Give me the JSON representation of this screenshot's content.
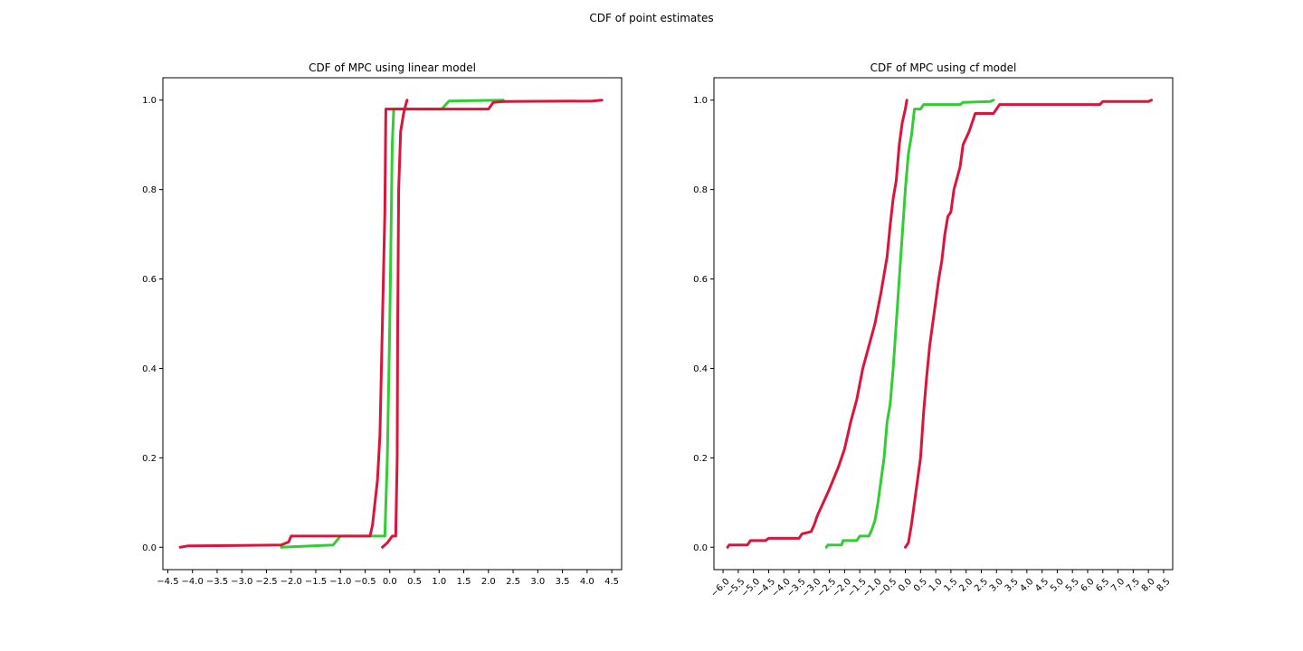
{
  "figure": {
    "suptitle": "CDF of point estimates"
  },
  "chart_data": [
    {
      "type": "line",
      "title": "CDF of MPC using linear model",
      "xlabel": "",
      "ylabel": "",
      "xlim": [
        -4.6,
        4.7
      ],
      "ylim": [
        -0.05,
        1.05
      ],
      "xticks": [
        -4.5,
        -4.0,
        -3.5,
        -3.0,
        -2.5,
        -2.0,
        -1.5,
        -1.0,
        -0.5,
        0.0,
        0.5,
        1.0,
        1.5,
        2.0,
        2.5,
        3.0,
        3.5,
        4.0,
        4.5
      ],
      "xtick_labels": [
        "−4.5",
        "−4.0",
        "−3.5",
        "−3.0",
        "−2.5",
        "−2.0",
        "−1.5",
        "−1.0",
        "−0.5",
        "0.0",
        "0.5",
        "1.0",
        "1.5",
        "2.0",
        "2.5",
        "3.0",
        "3.5",
        "4.0",
        "4.5"
      ],
      "xtick_rotation": 0,
      "yticks": [
        0.0,
        0.2,
        0.4,
        0.6,
        0.8,
        1.0
      ],
      "ytick_labels": [
        "0.0",
        "0.2",
        "0.4",
        "0.6",
        "0.8",
        "1.0"
      ],
      "grid": false,
      "series": [
        {
          "color": "#32CD32",
          "points": [
            [
              -2.2,
              0.0
            ],
            [
              -1.15,
              0.005
            ],
            [
              -1.0,
              0.025
            ],
            [
              -0.1,
              0.025
            ],
            [
              -0.05,
              0.2
            ],
            [
              0.0,
              0.5
            ],
            [
              0.05,
              0.9
            ],
            [
              0.08,
              0.98
            ],
            [
              1.05,
              0.98
            ],
            [
              1.2,
              0.998
            ],
            [
              2.3,
              1.0
            ]
          ]
        },
        {
          "color": "#DC143C",
          "points": [
            [
              -4.25,
              0.0
            ],
            [
              -4.1,
              0.003
            ],
            [
              -2.2,
              0.005
            ],
            [
              -2.05,
              0.012
            ],
            [
              -2.0,
              0.025
            ],
            [
              -0.4,
              0.025
            ],
            [
              -0.35,
              0.05
            ],
            [
              -0.3,
              0.1
            ],
            [
              -0.25,
              0.15
            ],
            [
              -0.2,
              0.25
            ],
            [
              -0.15,
              0.5
            ],
            [
              -0.1,
              0.75
            ],
            [
              -0.08,
              0.98
            ],
            [
              2.0,
              0.98
            ],
            [
              2.1,
              0.995
            ],
            [
              2.3,
              0.997
            ],
            [
              4.1,
              0.998
            ],
            [
              4.3,
              1.0
            ]
          ]
        },
        {
          "color": "#DC143C",
          "points": [
            [
              -0.15,
              0.0
            ],
            [
              -0.05,
              0.01
            ],
            [
              0.05,
              0.025
            ],
            [
              0.12,
              0.025
            ],
            [
              0.15,
              0.2
            ],
            [
              0.16,
              0.5
            ],
            [
              0.18,
              0.8
            ],
            [
              0.22,
              0.93
            ],
            [
              0.28,
              0.97
            ],
            [
              0.3,
              0.98
            ],
            [
              0.35,
              1.0
            ]
          ]
        }
      ]
    },
    {
      "type": "line",
      "title": "CDF of MPC using cf model",
      "xlabel": "",
      "ylabel": "",
      "xlim": [
        -6.3,
        8.8
      ],
      "ylim": [
        -0.05,
        1.05
      ],
      "xticks": [
        -6.0,
        -5.5,
        -5.0,
        -4.5,
        -4.0,
        -3.5,
        -3.0,
        -2.5,
        -2.0,
        -1.5,
        -1.0,
        -0.5,
        0.0,
        0.5,
        1.0,
        1.5,
        2.0,
        2.5,
        3.0,
        3.5,
        4.0,
        4.5,
        5.0,
        5.5,
        6.0,
        6.5,
        7.0,
        7.5,
        8.0,
        8.5
      ],
      "xtick_labels": [
        "−6.0",
        "−5.5",
        "−5.0",
        "−4.5",
        "−4.0",
        "−3.5",
        "−3.0",
        "−2.5",
        "−2.0",
        "−1.5",
        "−1.0",
        "−0.5",
        "0.0",
        "0.5",
        "1.0",
        "1.5",
        "2.0",
        "2.5",
        "3.0",
        "3.5",
        "4.0",
        "4.5",
        "5.0",
        "5.5",
        "6.0",
        "6.5",
        "7.0",
        "7.5",
        "8.0",
        "8.5"
      ],
      "xtick_rotation": -45,
      "yticks": [
        0.0,
        0.2,
        0.4,
        0.6,
        0.8,
        1.0
      ],
      "ytick_labels": [
        "0.0",
        "0.2",
        "0.4",
        "0.6",
        "0.8",
        "1.0"
      ],
      "grid": false,
      "series": [
        {
          "color": "#32CD32",
          "points": [
            [
              -2.6,
              0.0
            ],
            [
              -2.55,
              0.005
            ],
            [
              -2.1,
              0.005
            ],
            [
              -2.05,
              0.015
            ],
            [
              -1.6,
              0.015
            ],
            [
              -1.5,
              0.025
            ],
            [
              -1.2,
              0.025
            ],
            [
              -1.1,
              0.04
            ],
            [
              -1.0,
              0.06
            ],
            [
              -0.9,
              0.1
            ],
            [
              -0.8,
              0.15
            ],
            [
              -0.7,
              0.2
            ],
            [
              -0.6,
              0.28
            ],
            [
              -0.5,
              0.32
            ],
            [
              -0.4,
              0.4
            ],
            [
              -0.3,
              0.5
            ],
            [
              -0.2,
              0.6
            ],
            [
              -0.1,
              0.7
            ],
            [
              0.0,
              0.8
            ],
            [
              0.1,
              0.88
            ],
            [
              0.2,
              0.92
            ],
            [
              0.3,
              0.98
            ],
            [
              0.5,
              0.98
            ],
            [
              0.6,
              0.99
            ],
            [
              1.8,
              0.99
            ],
            [
              1.9,
              0.995
            ],
            [
              2.8,
              0.997
            ],
            [
              2.9,
              1.0
            ]
          ]
        },
        {
          "color": "#DC143C",
          "points": [
            [
              -5.85,
              0.0
            ],
            [
              -5.8,
              0.005
            ],
            [
              -5.2,
              0.005
            ],
            [
              -5.1,
              0.015
            ],
            [
              -4.6,
              0.015
            ],
            [
              -4.5,
              0.02
            ],
            [
              -3.5,
              0.02
            ],
            [
              -3.4,
              0.03
            ],
            [
              -3.1,
              0.035
            ],
            [
              -3.0,
              0.05
            ],
            [
              -2.9,
              0.07
            ],
            [
              -2.7,
              0.1
            ],
            [
              -2.5,
              0.13
            ],
            [
              -2.2,
              0.18
            ],
            [
              -2.0,
              0.22
            ],
            [
              -1.8,
              0.28
            ],
            [
              -1.6,
              0.33
            ],
            [
              -1.4,
              0.4
            ],
            [
              -1.2,
              0.45
            ],
            [
              -1.0,
              0.5
            ],
            [
              -0.8,
              0.57
            ],
            [
              -0.6,
              0.65
            ],
            [
              -0.5,
              0.72
            ],
            [
              -0.4,
              0.78
            ],
            [
              -0.3,
              0.82
            ],
            [
              -0.2,
              0.9
            ],
            [
              -0.1,
              0.95
            ],
            [
              0.0,
              0.98
            ],
            [
              0.05,
              1.0
            ]
          ]
        },
        {
          "color": "#DC143C",
          "points": [
            [
              0.0,
              0.0
            ],
            [
              0.1,
              0.01
            ],
            [
              0.2,
              0.05
            ],
            [
              0.3,
              0.1
            ],
            [
              0.4,
              0.15
            ],
            [
              0.5,
              0.2
            ],
            [
              0.6,
              0.3
            ],
            [
              0.7,
              0.38
            ],
            [
              0.8,
              0.45
            ],
            [
              0.9,
              0.5
            ],
            [
              1.0,
              0.55
            ],
            [
              1.1,
              0.6
            ],
            [
              1.2,
              0.64
            ],
            [
              1.3,
              0.7
            ],
            [
              1.4,
              0.74
            ],
            [
              1.5,
              0.75
            ],
            [
              1.6,
              0.8
            ],
            [
              1.8,
              0.85
            ],
            [
              1.9,
              0.9
            ],
            [
              2.1,
              0.93
            ],
            [
              2.2,
              0.95
            ],
            [
              2.3,
              0.97
            ],
            [
              2.9,
              0.97
            ],
            [
              3.0,
              0.98
            ],
            [
              3.1,
              0.99
            ],
            [
              6.4,
              0.99
            ],
            [
              6.5,
              0.997
            ],
            [
              8.0,
              0.997
            ],
            [
              8.1,
              1.0
            ]
          ]
        }
      ]
    }
  ]
}
